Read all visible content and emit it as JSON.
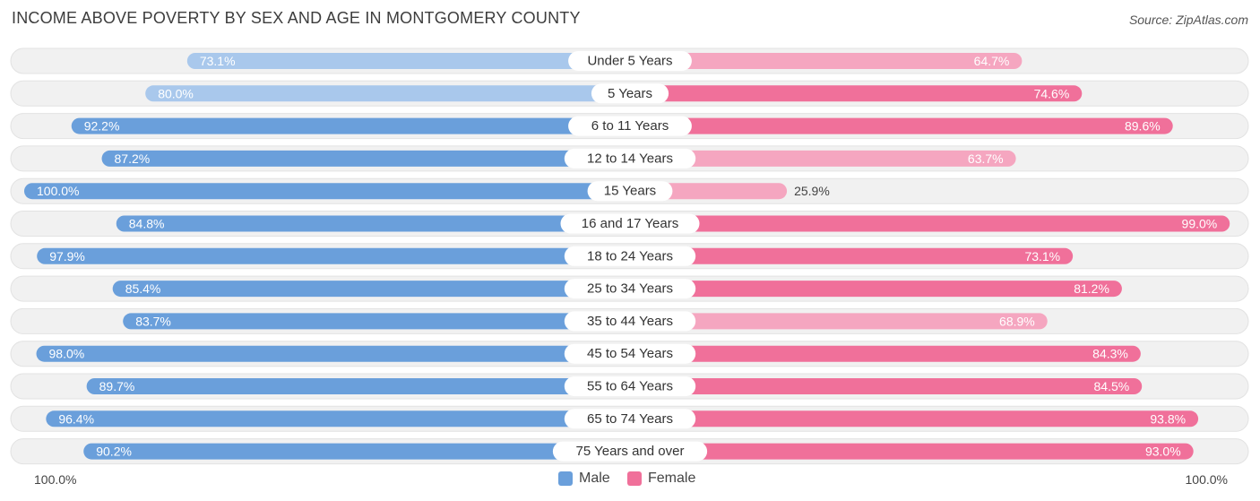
{
  "header": {
    "title": "INCOME ABOVE POVERTY BY SEX AND AGE IN MONTGOMERY COUNTY",
    "source": "Source: ZipAtlas.com"
  },
  "axis": {
    "left_label": "100.0%",
    "right_label": "100.0%"
  },
  "legend": {
    "male_label": "Male",
    "female_label": "Female"
  },
  "colors": {
    "male": "#6a9fdb",
    "male_light": "#a9c8ec",
    "female": "#f0709a",
    "female_light": "#f5a6c0",
    "row_bg": "#f1f1f1",
    "row_border": "#e2e2e2"
  },
  "chart_data": {
    "type": "bar",
    "orientation": "diverging-horizontal",
    "title": "INCOME ABOVE POVERTY BY SEX AND AGE IN MONTGOMERY COUNTY",
    "unit": "%",
    "xlim": [
      0,
      100
    ],
    "categories": [
      "Under 5 Years",
      "5 Years",
      "6 to 11 Years",
      "12 to 14 Years",
      "15 Years",
      "16 and 17 Years",
      "18 to 24 Years",
      "25 to 34 Years",
      "35 to 44 Years",
      "45 to 54 Years",
      "55 to 64 Years",
      "65 to 74 Years",
      "75 Years and over"
    ],
    "series": [
      {
        "name": "Male",
        "values": [
          73.1,
          80.0,
          92.2,
          87.2,
          100.0,
          84.8,
          97.9,
          85.4,
          83.7,
          98.0,
          89.7,
          96.4,
          90.2
        ]
      },
      {
        "name": "Female",
        "values": [
          64.7,
          74.6,
          89.6,
          63.7,
          25.9,
          99.0,
          73.1,
          81.2,
          68.9,
          84.3,
          84.5,
          93.8,
          93.0
        ]
      }
    ],
    "legend_position": "bottom-center"
  }
}
